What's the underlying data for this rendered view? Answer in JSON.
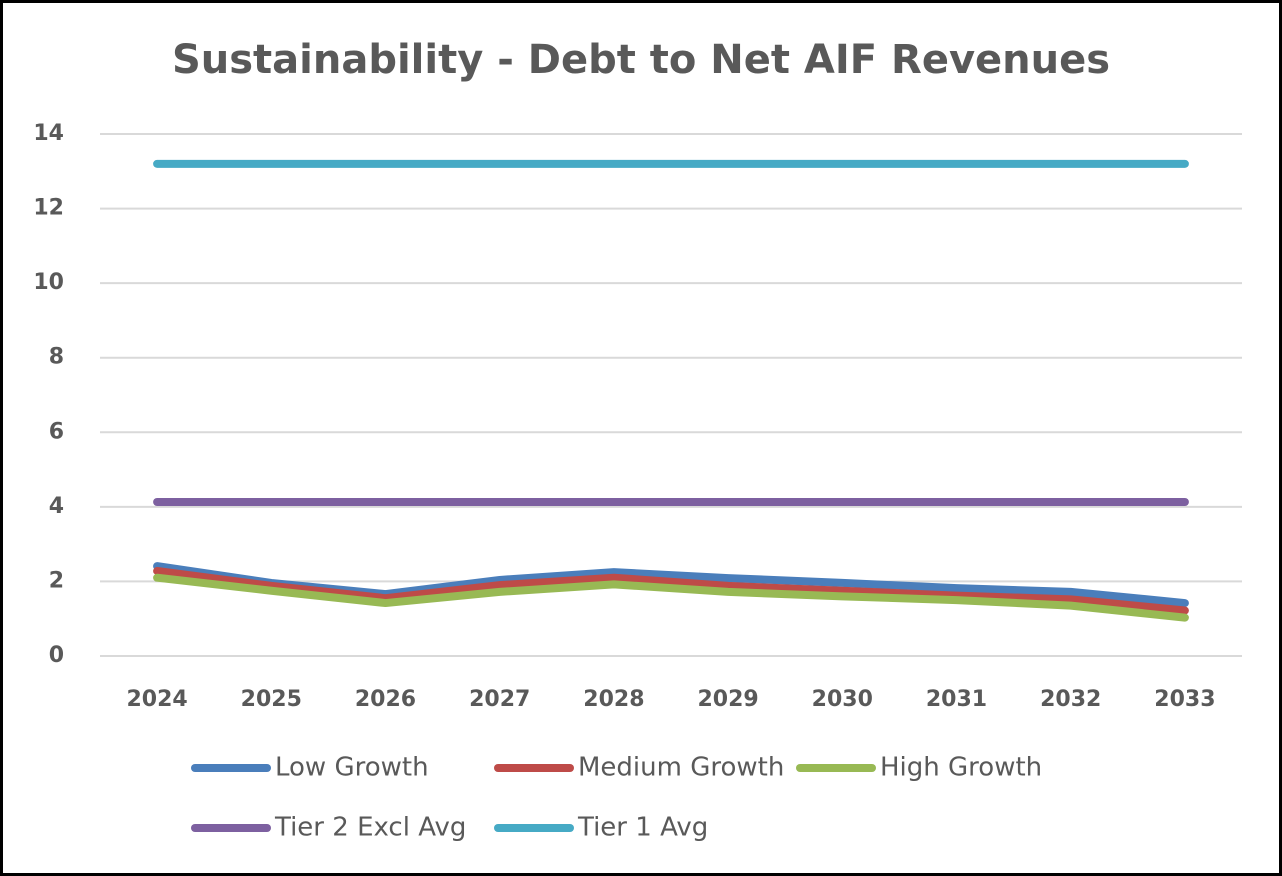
{
  "chart_data": {
    "type": "line",
    "title": "Sustainability - Debt to Net AIF Revenues",
    "categories": [
      "2024",
      "2025",
      "2026",
      "2027",
      "2028",
      "2029",
      "2030",
      "2031",
      "2032",
      "2033"
    ],
    "series": [
      {
        "name": "Low Growth",
        "color": "#4a7ebb",
        "values": [
          2.41,
          1.96,
          1.66,
          2.04,
          2.25,
          2.09,
          1.96,
          1.82,
          1.72,
          1.42
        ]
      },
      {
        "name": "Medium Growth",
        "color": "#be4b48",
        "values": [
          2.28,
          1.88,
          1.55,
          1.9,
          2.1,
          1.88,
          1.75,
          1.62,
          1.52,
          1.22
        ]
      },
      {
        "name": "High Growth",
        "color": "#98b954",
        "values": [
          2.1,
          1.75,
          1.42,
          1.72,
          1.92,
          1.72,
          1.6,
          1.5,
          1.35,
          1.03
        ]
      },
      {
        "name": "Tier 2 Excl Avg",
        "color": "#7d60a0",
        "values": [
          4.13,
          4.13,
          4.13,
          4.13,
          4.13,
          4.13,
          4.13,
          4.13,
          4.13,
          4.13
        ]
      },
      {
        "name": "Tier 1 Avg",
        "color": "#46aac5",
        "values": [
          13.2,
          13.2,
          13.2,
          13.2,
          13.2,
          13.2,
          13.2,
          13.2,
          13.2,
          13.2
        ]
      }
    ],
    "ylim": [
      0,
      14
    ],
    "yticks": [
      0,
      2,
      4,
      6,
      8,
      10,
      12,
      14
    ],
    "grid": true,
    "legend": "bottom"
  }
}
